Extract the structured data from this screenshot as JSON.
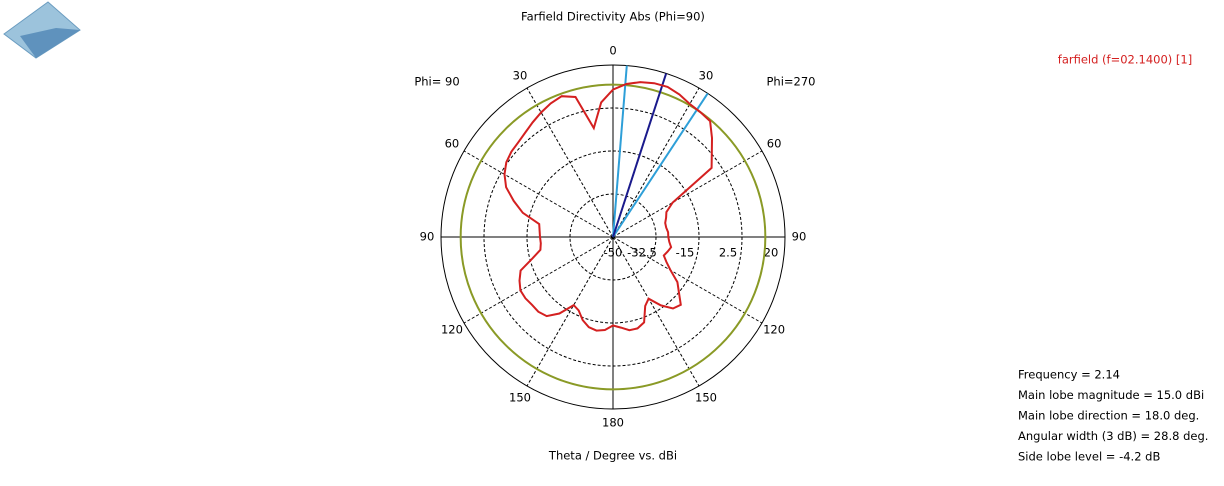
{
  "chart_data": {
    "type": "polar",
    "title": "Farfield Directivity Abs (Phi=90)",
    "left_label": "Phi= 90",
    "right_label": "Phi=270",
    "axis_label": "Theta / Degree vs. dBi",
    "rlim": [
      -50,
      20
    ],
    "rticks": [
      -50,
      -32.5,
      -15,
      2.5,
      20
    ],
    "theta_ticks_right": [
      0,
      30,
      60,
      90,
      120,
      150,
      180
    ],
    "theta_ticks_left": [
      30,
      60,
      90,
      120,
      150
    ],
    "series": [
      {
        "name": "farfield (f=02.1400) [1]",
        "color": "#d42020",
        "theta": [
          0,
          5,
          10,
          15,
          20,
          25,
          30,
          35,
          40,
          45,
          50,
          55,
          60,
          65,
          70,
          75,
          80,
          85,
          90,
          95,
          100,
          105,
          110,
          115,
          120,
          125,
          130,
          135,
          140,
          145,
          150,
          155,
          160,
          165,
          170,
          175,
          180,
          185,
          190,
          195,
          200,
          205,
          210,
          215,
          220,
          225,
          230,
          235,
          240,
          245,
          250,
          255,
          260,
          265,
          270,
          275,
          280,
          285,
          290,
          295,
          300,
          305,
          310,
          315,
          320,
          325,
          330,
          335,
          340,
          345,
          350,
          355
        ],
        "values": [
          10,
          12.5,
          14,
          14.8,
          15,
          14,
          12.5,
          12,
          11.5,
          7,
          2.5,
          -1,
          -22,
          -26,
          -27,
          -28,
          -28,
          -27.5,
          -27.5,
          -27,
          -26,
          -27,
          -28,
          -26,
          -23,
          -18,
          -15,
          -11,
          -12,
          -16,
          -21,
          -19,
          -13,
          -11.5,
          -11.5,
          -13,
          -14,
          -12,
          -11.3,
          -12,
          -14,
          -17,
          -18,
          -12,
          -8,
          -7,
          -7,
          -6.5,
          -6.5,
          -8,
          -10,
          -16,
          -20,
          -20.5,
          -20.3,
          -20,
          -19.5,
          -12,
          -7,
          -2,
          1,
          3,
          4,
          4.5,
          5.5,
          7,
          8.5,
          10,
          11,
          9,
          -5,
          5
        ]
      }
    ],
    "reference_level": 12,
    "reference_color": "#8a9a26",
    "main_lobe_angle": 18,
    "main_lobe_color": "#1a1a8c",
    "beam_edges": [
      4.6,
      33.4
    ],
    "beam_edge_color": "#2e9fd8",
    "info": [
      "Frequency = 2.14",
      "Main lobe magnitude =  15.0 dBi",
      "Main lobe direction =  18.0 deg.",
      "Angular width (3 dB) =  28.8 deg.",
      "Side lobe level =  -4.2 dB"
    ]
  }
}
